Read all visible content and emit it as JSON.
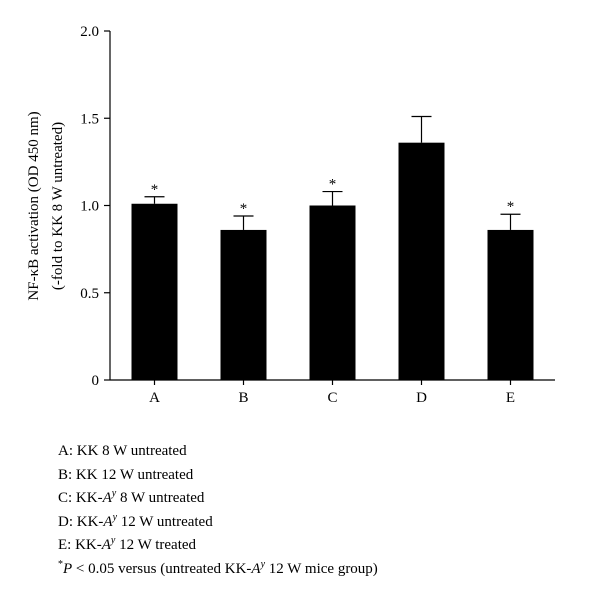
{
  "chart_data": {
    "type": "bar",
    "categories": [
      "A",
      "B",
      "C",
      "D",
      "E"
    ],
    "values": [
      1.01,
      0.86,
      1.0,
      1.36,
      0.86
    ],
    "errors": [
      0.04,
      0.08,
      0.08,
      0.15,
      0.09
    ],
    "significance_marks": [
      "*",
      "*",
      "*",
      "",
      "*"
    ],
    "ylabel_line1": "NF-κB activation (OD 450 nm)",
    "ylabel_line2": "(-fold to KK 8 W untreated)",
    "ylim": [
      0,
      2.0
    ],
    "yticks": [
      "0",
      "0.5",
      "1.0",
      "1.5",
      "2.0"
    ],
    "bar_color": "#000000",
    "grid": false
  },
  "legend": {
    "A": "A: KK 8 W untreated",
    "B": "B: KK 12 W untreated",
    "C_pre": "C: KK-",
    "C_post": " 8 W untreated",
    "D_pre": "D: KK-",
    "D_post": " 12 W untreated",
    "E_pre": "E: KK-",
    "E_post": " 12 W treated",
    "allele_base": "A",
    "allele_sup": "y",
    "note_star": "*",
    "note_p": "P",
    "note_mid": " < 0.05 versus (untreated KK-",
    "note_end": " 12 W mice group)"
  }
}
